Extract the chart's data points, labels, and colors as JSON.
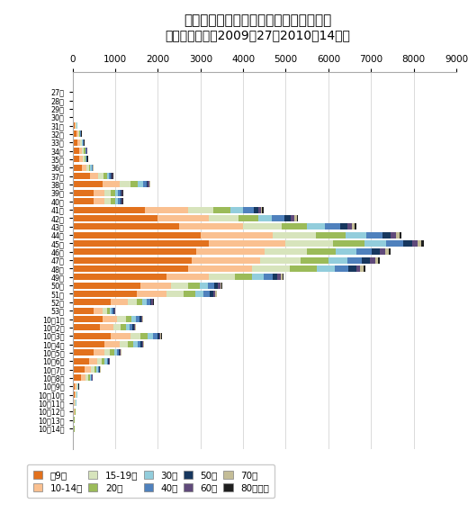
{
  "title": "東京都におけるインフルエンザの報告数",
  "subtitle": "（年齢階層別、2009年27～2010年14週）",
  "xlim": [
    0,
    9000
  ],
  "xticks": [
    0,
    1000,
    2000,
    3000,
    4000,
    5000,
    6000,
    7000,
    8000,
    9000
  ],
  "categories": [
    "27週",
    "28週",
    "29週",
    "30週",
    "31週",
    "32週",
    "33週",
    "34週",
    "35週",
    "36週",
    "37週",
    "38週",
    "39週",
    "40週",
    "41週",
    "42週",
    "43週",
    "44週",
    "45週",
    "46週",
    "47週",
    "48週",
    "49週",
    "50週",
    "51週",
    "52週",
    "53週",
    "10年1週",
    "10年2週",
    "10年3週",
    "10年4週",
    "10年5週",
    "10年6週",
    "10年7週",
    "10年8週",
    "10年9週",
    "10年10週",
    "10年11週",
    "10年12週",
    "10年13週",
    "10年14週"
  ],
  "age_groups": [
    "～9歳",
    "10-14歳",
    "15-19歳",
    "20代",
    "30代",
    "40代",
    "50代",
    "60代",
    "70代",
    "80歳以上"
  ],
  "colors": [
    "#E2711D",
    "#FAC090",
    "#D7E4BC",
    "#9BBB59",
    "#92CDDC",
    "#4F81BD",
    "#17375E",
    "#604A7B",
    "#C4BD97",
    "#1F1F1F"
  ],
  "data": {
    "～9歳": [
      20,
      10,
      20,
      10,
      60,
      100,
      120,
      150,
      160,
      220,
      400,
      700,
      500,
      500,
      1700,
      2000,
      2500,
      3000,
      3200,
      2900,
      2800,
      2700,
      2200,
      1600,
      1500,
      900,
      500,
      700,
      650,
      900,
      750,
      500,
      380,
      280,
      200,
      60,
      50,
      40,
      30,
      20,
      20
    ],
    "10-14歳": [
      5,
      5,
      5,
      5,
      20,
      40,
      60,
      80,
      80,
      100,
      200,
      400,
      250,
      250,
      1000,
      1200,
      1500,
      1700,
      1800,
      1600,
      1600,
      1500,
      1000,
      700,
      700,
      400,
      200,
      350,
      300,
      450,
      350,
      250,
      200,
      150,
      100,
      30,
      25,
      20,
      15,
      10,
      10
    ],
    "15-19歳": [
      3,
      3,
      3,
      3,
      10,
      20,
      30,
      40,
      40,
      60,
      120,
      250,
      150,
      150,
      600,
      700,
      900,
      1000,
      1100,
      1000,
      950,
      900,
      600,
      400,
      400,
      200,
      100,
      200,
      180,
      250,
      200,
      130,
      100,
      80,
      60,
      20,
      15,
      12,
      10,
      8,
      8
    ],
    "20代": [
      2,
      2,
      2,
      2,
      8,
      15,
      20,
      25,
      25,
      40,
      80,
      180,
      100,
      100,
      400,
      450,
      600,
      700,
      750,
      680,
      650,
      620,
      400,
      280,
      280,
      140,
      70,
      140,
      120,
      170,
      130,
      90,
      70,
      50,
      40,
      12,
      10,
      8,
      7,
      5,
      5
    ],
    "30代": [
      3,
      3,
      3,
      3,
      8,
      12,
      15,
      18,
      18,
      25,
      60,
      120,
      70,
      70,
      300,
      320,
      420,
      480,
      510,
      470,
      450,
      430,
      280,
      200,
      195,
      100,
      50,
      100,
      90,
      120,
      95,
      65,
      50,
      38,
      28,
      9,
      7,
      6,
      5,
      4,
      4
    ],
    "40代": [
      2,
      2,
      2,
      2,
      5,
      8,
      10,
      12,
      12,
      18,
      40,
      80,
      50,
      50,
      250,
      300,
      350,
      380,
      390,
      360,
      340,
      320,
      210,
      150,
      145,
      75,
      38,
      80,
      70,
      95,
      75,
      52,
      40,
      30,
      22,
      7,
      6,
      5,
      4,
      3,
      3
    ],
    "50代": [
      1,
      1,
      1,
      1,
      3,
      5,
      6,
      8,
      8,
      10,
      20,
      40,
      25,
      25,
      100,
      150,
      180,
      200,
      220,
      200,
      190,
      180,
      120,
      85,
      80,
      40,
      20,
      40,
      35,
      48,
      38,
      26,
      20,
      15,
      11,
      4,
      3,
      3,
      2,
      2,
      2
    ],
    "60代": [
      1,
      1,
      1,
      1,
      2,
      4,
      5,
      6,
      6,
      8,
      15,
      30,
      18,
      18,
      60,
      80,
      100,
      120,
      130,
      120,
      110,
      100,
      65,
      48,
      45,
      23,
      12,
      23,
      20,
      28,
      22,
      15,
      11,
      9,
      7,
      2,
      2,
      2,
      1,
      1,
      1
    ],
    "70代": [
      1,
      1,
      1,
      1,
      2,
      3,
      4,
      5,
      5,
      6,
      10,
      20,
      12,
      12,
      40,
      55,
      70,
      80,
      85,
      78,
      72,
      68,
      44,
      32,
      30,
      15,
      8,
      15,
      14,
      19,
      15,
      10,
      8,
      6,
      4,
      1,
      1,
      1,
      1,
      1,
      1
    ],
    "80歳以上": [
      1,
      1,
      1,
      1,
      1,
      2,
      3,
      3,
      3,
      4,
      7,
      13,
      8,
      8,
      25,
      35,
      45,
      50,
      55,
      50,
      46,
      44,
      28,
      20,
      19,
      10,
      5,
      10,
      9,
      12,
      10,
      7,
      5,
      4,
      3,
      1,
      1,
      1,
      1,
      1,
      1
    ]
  }
}
